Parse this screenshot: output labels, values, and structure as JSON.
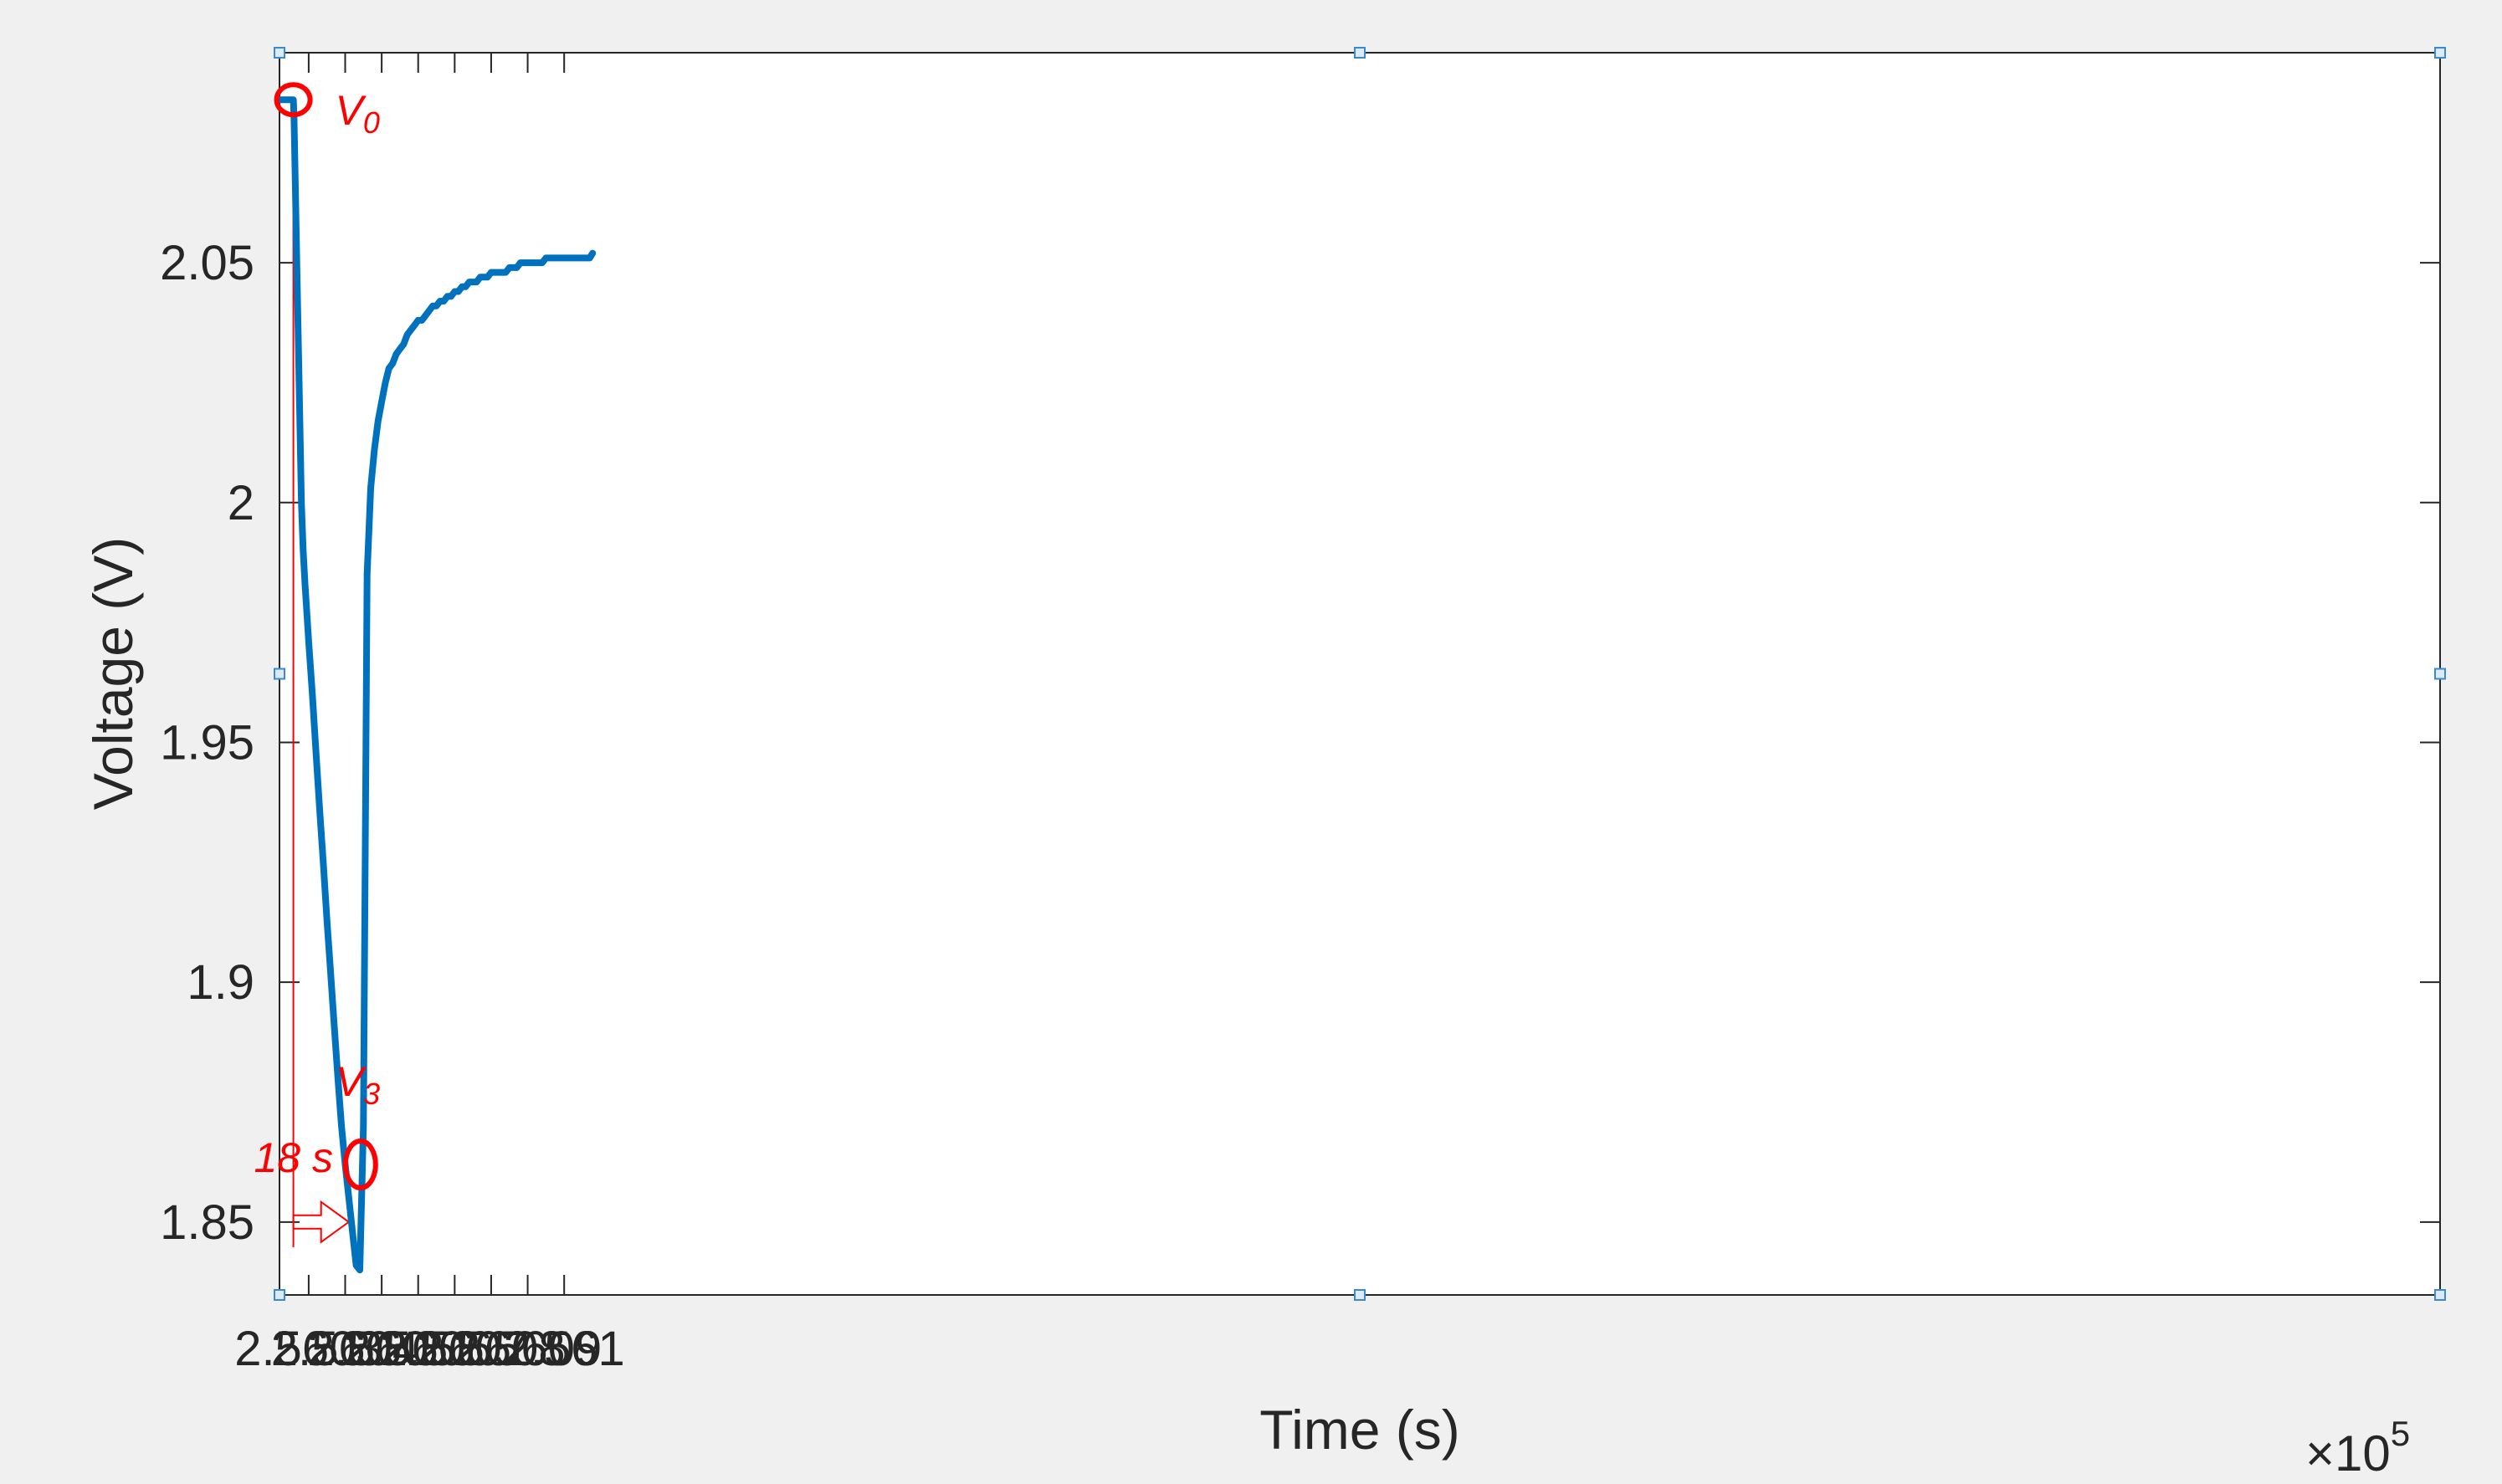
{
  "chart_data": {
    "type": "line",
    "xlabel": "Time (s)",
    "ylabel": "Voltage (V)",
    "x_exponent_label": "×10",
    "x_exponent_power": "5",
    "xlim": [
      2.56022,
      2.56614
    ],
    "ylim": [
      1.8348,
      2.0938
    ],
    "xticks": [
      2.5603,
      2.5604,
      2.5605,
      2.5606,
      2.5607,
      2.5608,
      2.5609,
      2.561
    ],
    "xtick_labels": [
      "2.5603",
      "2.5604",
      "2.5605",
      "2.5606",
      "2.5607",
      "2.5608",
      "2.5609",
      "2.561"
    ],
    "yticks": [
      1.85,
      1.9,
      1.95,
      2,
      2.05
    ],
    "ytick_labels": [
      "1.85",
      "1.9",
      "1.95",
      "2",
      "2.05"
    ],
    "grid": false,
    "line_color": "#0072BD",
    "annotation_color": "#FF0000",
    "series": [
      {
        "x": [
          2.56022,
          2.560258,
          2.56026,
          2.56028,
          2.560285,
          2.56029,
          2.5603,
          2.56031,
          2.56032,
          2.56033,
          2.56034,
          2.56035,
          2.56036,
          2.56037,
          2.56038,
          2.56039,
          2.5604,
          2.56041,
          2.56042,
          2.56043,
          2.56044,
          2.56045,
          2.56046,
          2.56047,
          2.56048,
          2.56049,
          2.5605,
          2.560505,
          2.56051,
          2.56052,
          2.56053,
          2.56054,
          2.56055,
          2.56056,
          2.56057,
          2.56058,
          2.56059,
          2.5606,
          2.56061,
          2.56062,
          2.56063,
          2.56064,
          2.56065,
          2.56066,
          2.56067,
          2.56068,
          2.56069,
          2.5607,
          2.56071,
          2.56072,
          2.56073,
          2.56074,
          2.56075,
          2.56076,
          2.56077,
          2.56078,
          2.56079,
          2.5608,
          2.56081,
          2.56082,
          2.56083,
          2.56084,
          2.56085,
          2.56086,
          2.56087,
          2.56088,
          2.56089,
          2.5609,
          2.56091,
          2.56092,
          2.56093,
          2.56094,
          2.56095,
          2.56096,
          2.56097,
          2.56098,
          2.56099,
          2.561,
          2.56101,
          2.56102,
          2.56103,
          2.56104,
          2.56105,
          2.56106,
          2.56107,
          2.561078
        ],
        "values": [
          2.084,
          2.084,
          2.08,
          2.0,
          1.99,
          1.983,
          1.971,
          1.96,
          1.948,
          1.936,
          1.925,
          1.913,
          1.902,
          1.891,
          1.88,
          1.87,
          1.862,
          1.855,
          1.848,
          1.841,
          1.84,
          1.87,
          1.985,
          2.003,
          2.011,
          2.017,
          2.021,
          2.023,
          2.025,
          2.028,
          2.029,
          2.031,
          2.032,
          2.033,
          2.035,
          2.036,
          2.037,
          2.038,
          2.038,
          2.039,
          2.04,
          2.041,
          2.041,
          2.042,
          2.042,
          2.043,
          2.043,
          2.044,
          2.044,
          2.045,
          2.045,
          2.046,
          2.046,
          2.046,
          2.047,
          2.047,
          2.047,
          2.048,
          2.048,
          2.048,
          2.048,
          2.048,
          2.049,
          2.049,
          2.049,
          2.05,
          2.05,
          2.05,
          2.05,
          2.05,
          2.05,
          2.05,
          2.051,
          2.051,
          2.051,
          2.051,
          2.051,
          2.051,
          2.051,
          2.051,
          2.051,
          2.051,
          2.051,
          2.051,
          2.051,
          2.052
        ]
      }
    ],
    "annotations": [
      {
        "label": "V",
        "subscript": "0",
        "x": 2.560258,
        "y": 2.084
      },
      {
        "label": "V",
        "subscript": "3",
        "x": 2.560442,
        "y": 1.862
      },
      {
        "label": "18 s",
        "x_start": 2.560258,
        "x_end": 2.560442,
        "y": 1.85
      }
    ]
  }
}
